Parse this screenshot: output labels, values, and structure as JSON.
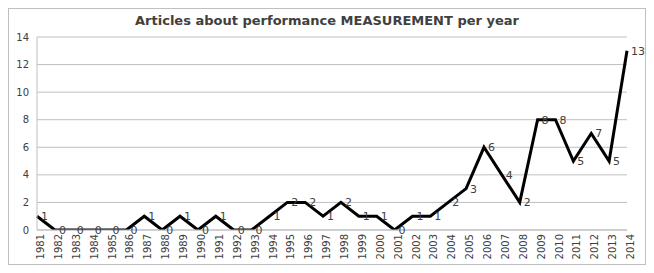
{
  "chart_data": {
    "type": "line",
    "title": "Articles about performance MEASUREMENT per year",
    "categories": [
      "1981",
      "1982",
      "1983",
      "1984",
      "1985",
      "1986",
      "1987",
      "1988",
      "1989",
      "1990",
      "1991",
      "1992",
      "1993",
      "1994",
      "1995",
      "1996",
      "1997",
      "1998",
      "1999",
      "2000",
      "2001",
      "2002",
      "2003",
      "2004",
      "2005",
      "2006",
      "2007",
      "2008",
      "2009",
      "2010",
      "2011",
      "2012",
      "2013",
      "2014"
    ],
    "values": [
      1,
      0,
      0,
      0,
      0,
      0,
      1,
      0,
      1,
      0,
      1,
      0,
      0,
      1,
      2,
      2,
      1,
      2,
      1,
      1,
      0,
      1,
      1,
      2,
      3,
      6,
      4,
      2,
      8,
      8,
      5,
      7,
      5,
      13
    ],
    "color": "#000000",
    "ylim": [
      0,
      14
    ],
    "yticks": [
      0,
      2,
      4,
      6,
      8,
      10,
      12,
      14
    ],
    "grid": true,
    "data_labels": true
  }
}
